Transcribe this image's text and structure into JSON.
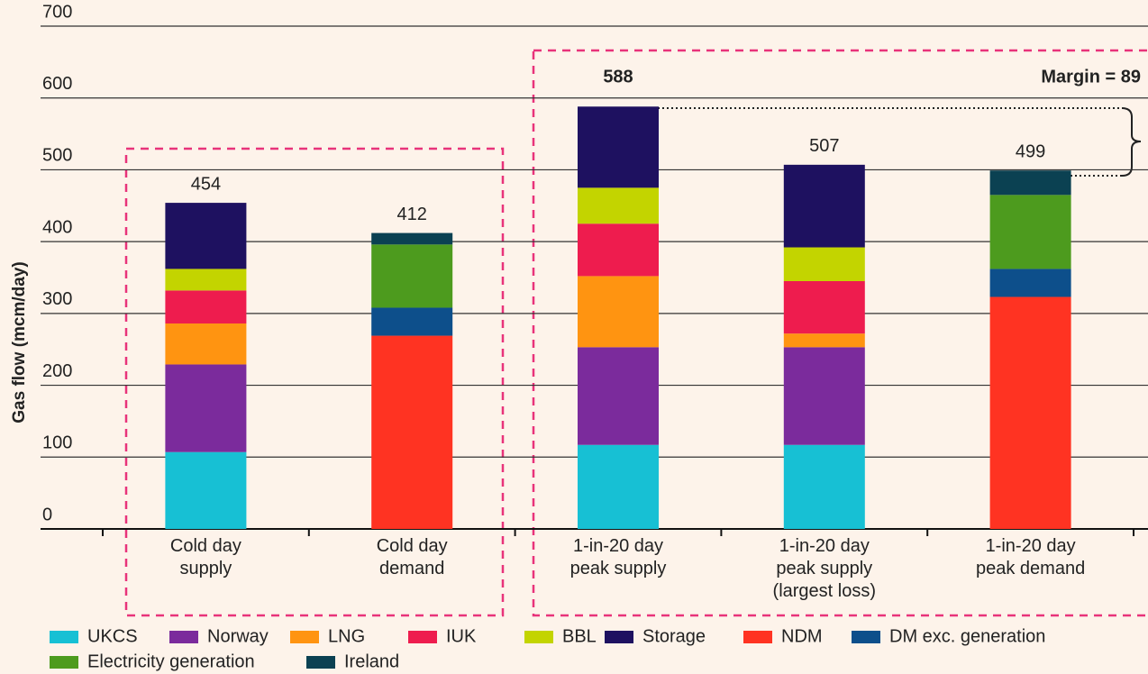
{
  "chart_data": {
    "type": "stacked_bar",
    "y_label": "Gas flow (mcm/day)",
    "categories": [
      [
        "Cold day",
        "supply"
      ],
      [
        "Cold day",
        "demand"
      ],
      [
        "1-in-20 day",
        "peak supply"
      ],
      [
        "1-in-20 day",
        "peak supply",
        "(largest loss)"
      ],
      [
        "1-in-20 day",
        "peak demand"
      ]
    ],
    "totals": [
      454,
      412,
      588,
      507,
      499
    ],
    "annotation": "Margin = 89",
    "ylim": [
      0,
      700
    ],
    "yticks": [
      0,
      100,
      200,
      300,
      400,
      500,
      600,
      700
    ],
    "grid": true,
    "series": [
      {
        "name": "UKCS",
        "color": "#17c0d4",
        "values": [
          107,
          null,
          117,
          117,
          null
        ]
      },
      {
        "name": "Norway",
        "color": "#7b2b9c",
        "values": [
          122,
          null,
          136,
          136,
          null
        ]
      },
      {
        "name": "LNG",
        "color": "#ff9411",
        "values": [
          57,
          null,
          99,
          19,
          null
        ]
      },
      {
        "name": "IUK",
        "color": "#ee1c4e",
        "values": [
          46,
          null,
          73,
          73,
          null
        ]
      },
      {
        "name": "BBL",
        "color": "#c3d400",
        "values": [
          30,
          null,
          50,
          47,
          null
        ]
      },
      {
        "name": "Storage",
        "color": "#1e1160",
        "values": [
          92,
          null,
          113,
          115,
          null
        ]
      },
      {
        "name": "NDM",
        "color": "#ff3322",
        "values": [
          null,
          269,
          null,
          null,
          323
        ]
      },
      {
        "name": "DM exc. generation",
        "color": "#0d4f8b",
        "values": [
          null,
          39,
          null,
          null,
          39
        ]
      },
      {
        "name": "Electricity generation",
        "color": "#4d9b1e",
        "values": [
          null,
          88,
          null,
          null,
          103
        ]
      },
      {
        "name": "Ireland",
        "color": "#0b4152",
        "values": [
          null,
          16,
          null,
          null,
          34
        ]
      }
    ]
  }
}
